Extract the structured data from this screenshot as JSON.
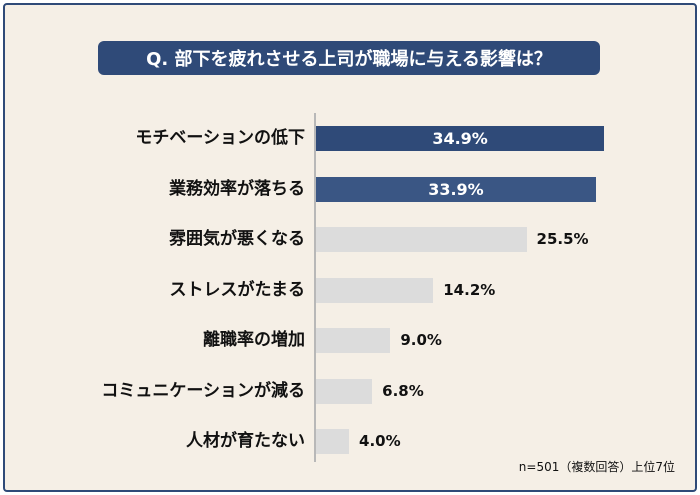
{
  "chart_data": {
    "type": "bar",
    "orientation": "horizontal",
    "title": "Q. 部下を疲れさせる上司が職場に与える影響は？",
    "categories": [
      "モチベーションの低下",
      "業務効率が落ちる",
      "雰囲気が悪くなる",
      "ストレスがたまる",
      "離職率の増加",
      "コミュニケーションが減る",
      "人材が育たない"
    ],
    "values": [
      34.9,
      33.9,
      25.5,
      14.2,
      9.0,
      6.8,
      4.0
    ],
    "value_labels": [
      "34.9%",
      "33.9%",
      "25.5%",
      "14.2%",
      "9.0%",
      "6.8%",
      "4.0%"
    ],
    "bar_colors": [
      "#2f4a78",
      "#3a5684",
      "#dcdcdc",
      "#dcdcdc",
      "#dcdcdc",
      "#dcdcdc",
      "#dcdcdc"
    ],
    "xlim": [
      0,
      35
    ],
    "footnote": "n=501（複数回答）上位7位"
  },
  "colors": {
    "background": "#f5efe6",
    "accent": "#2f4a78"
  }
}
